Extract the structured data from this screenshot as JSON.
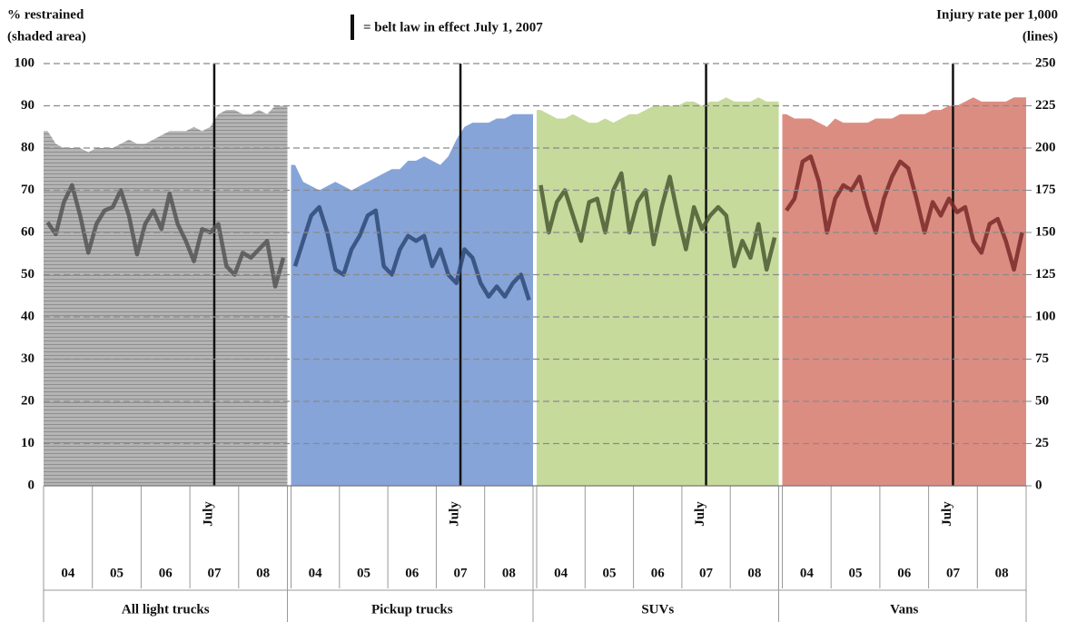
{
  "chart_data": {
    "type": "area-line",
    "ylabel": [
      "% restrained",
      "(shaded area)"
    ],
    "y2label": [
      "Injury rate per 1,000",
      "(lines)"
    ],
    "annotation": "= belt law in effect July 1, 2007",
    "event_label": "July",
    "years": [
      "04",
      "05",
      "06",
      "07",
      "08"
    ],
    "ylim": [
      0,
      100
    ],
    "yticks": [
      0,
      10,
      20,
      30,
      40,
      50,
      60,
      70,
      80,
      90,
      100
    ],
    "y2lim": [
      0,
      250
    ],
    "y2ticks": [
      0,
      25,
      50,
      75,
      100,
      125,
      150,
      175,
      200,
      225,
      250
    ],
    "grid": true,
    "panels": [
      {
        "label": "All light trucks",
        "area_color": "#a9a9a9",
        "line_color": "#555555",
        "area": [
          84,
          81,
          80,
          80,
          80,
          79,
          80,
          80,
          80,
          81,
          82,
          81,
          81,
          82,
          83,
          84,
          84,
          84,
          85,
          84,
          85,
          88,
          89,
          89,
          88,
          88,
          89,
          88,
          90,
          90
        ],
        "line": [
          156,
          149,
          168,
          178,
          160,
          138,
          155,
          163,
          165,
          175,
          160,
          137,
          155,
          163,
          152,
          173,
          155,
          145,
          133,
          152,
          150,
          155,
          130,
          125,
          138,
          135,
          140,
          145,
          118,
          135
        ]
      },
      {
        "label": "Pickup trucks",
        "area_color": "#86a4d8",
        "line_color": "#2f4a78",
        "area": [
          76,
          72,
          71,
          70,
          71,
          72,
          71,
          70,
          71,
          72,
          73,
          74,
          75,
          75,
          77,
          77,
          78,
          77,
          76,
          78,
          82,
          85,
          86,
          86,
          86,
          87,
          87,
          88,
          88,
          88
        ],
        "line": [
          130,
          145,
          160,
          165,
          150,
          128,
          125,
          140,
          148,
          160,
          163,
          130,
          125,
          140,
          148,
          145,
          148,
          130,
          140,
          125,
          120,
          140,
          135,
          120,
          112,
          118,
          112,
          120,
          125,
          110
        ]
      },
      {
        "label": "SUVs",
        "area_color": "#c6da9c",
        "line_color": "#4a5a32",
        "area": [
          89,
          88,
          87,
          87,
          88,
          87,
          86,
          86,
          87,
          86,
          87,
          88,
          88,
          89,
          90,
          90,
          90,
          90,
          91,
          91,
          90,
          91,
          91,
          92,
          91,
          91,
          91,
          92,
          91,
          91
        ],
        "line": [
          178,
          150,
          168,
          175,
          160,
          145,
          168,
          170,
          150,
          175,
          185,
          150,
          168,
          175,
          143,
          165,
          183,
          160,
          140,
          165,
          152,
          160,
          165,
          160,
          130,
          145,
          135,
          155,
          128,
          147
        ]
      },
      {
        "label": "Vans",
        "area_color": "#dc8d82",
        "line_color": "#7a2a28",
        "area": [
          88,
          87,
          87,
          87,
          86,
          85,
          87,
          86,
          86,
          86,
          86,
          87,
          87,
          87,
          88,
          88,
          88,
          88,
          89,
          89,
          90,
          90,
          91,
          92,
          91,
          91,
          91,
          91,
          92,
          92
        ],
        "line": [
          163,
          170,
          192,
          195,
          180,
          150,
          170,
          178,
          175,
          183,
          165,
          150,
          170,
          183,
          192,
          188,
          170,
          150,
          168,
          160,
          170,
          162,
          165,
          145,
          138,
          155,
          158,
          145,
          128,
          150
        ]
      }
    ]
  }
}
